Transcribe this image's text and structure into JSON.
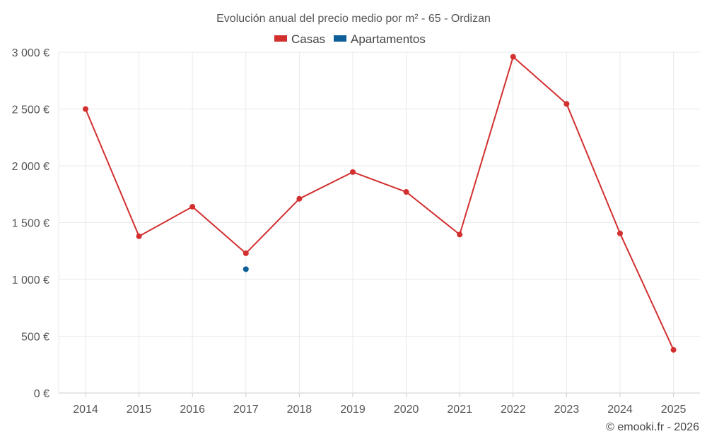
{
  "chart_data": {
    "type": "line",
    "title": "Evolución anual del precio medio por m² - 65 - Ordizan",
    "categories": [
      "2014",
      "2015",
      "2016",
      "2017",
      "2018",
      "2019",
      "2020",
      "2021",
      "2022",
      "2023",
      "2024",
      "2025"
    ],
    "series": [
      {
        "name": "Casas",
        "color": "#d32f2f",
        "values": [
          2500,
          1380,
          1640,
          1230,
          1710,
          1945,
          1770,
          1395,
          2960,
          2545,
          1405,
          380
        ]
      },
      {
        "name": "Apartamentos",
        "color": "#0d5e99",
        "values": [
          null,
          null,
          null,
          1090,
          null,
          null,
          null,
          null,
          null,
          null,
          null,
          null
        ]
      }
    ],
    "y_ticks": [
      "0 €",
      "500 €",
      "1 000 €",
      "1 500 €",
      "2 000 €",
      "2 500 €",
      "3 000 €"
    ],
    "y_tick_values": [
      0,
      500,
      1000,
      1500,
      2000,
      2500,
      3000
    ],
    "ylim": [
      0,
      3000
    ],
    "xlabel": "",
    "ylabel": "",
    "legend_position": "top-center",
    "grid": true
  },
  "credit": "© emooki.fr - 2026"
}
